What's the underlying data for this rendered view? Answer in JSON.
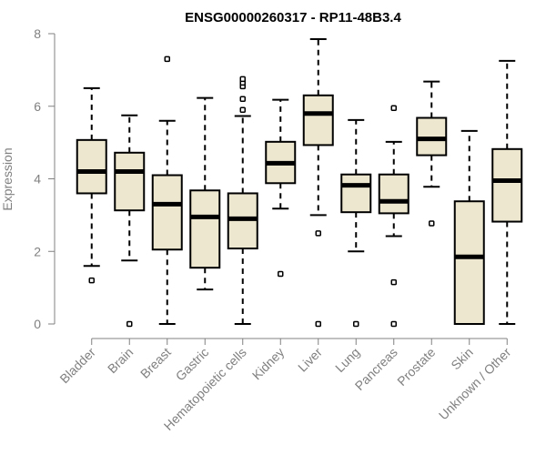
{
  "chart_data": {
    "type": "boxplot",
    "title": "ENSG00000260317 - RP11-48B3.4",
    "xlabel": "",
    "ylabel": "Expression",
    "ylim": [
      0,
      8
    ],
    "yticks": [
      0,
      2,
      4,
      6,
      8
    ],
    "colors": {
      "box_fill": "#ede7cf",
      "axis": "#808080",
      "stroke": "#000000"
    },
    "categories": [
      "Bladder",
      "Brain",
      "Breast",
      "Gastric",
      "Hematopoietic cells",
      "Kidney",
      "Liver",
      "Lung",
      "Pancreas",
      "Prostate",
      "Skin",
      "Unknown / Other"
    ],
    "boxes": [
      {
        "name": "Bladder",
        "whisker_low": 1.6,
        "q1": 3.6,
        "median": 4.2,
        "q3": 5.07,
        "whisker_high": 6.5,
        "outliers": [
          1.2
        ]
      },
      {
        "name": "Brain",
        "whisker_low": 1.75,
        "q1": 3.13,
        "median": 4.2,
        "q3": 4.72,
        "whisker_high": 5.75,
        "outliers": [
          0.0
        ]
      },
      {
        "name": "Breast",
        "whisker_low": 0.0,
        "q1": 2.05,
        "median": 3.3,
        "q3": 4.1,
        "whisker_high": 5.6,
        "outliers": [
          7.3
        ]
      },
      {
        "name": "Gastric",
        "whisker_low": 0.95,
        "q1": 1.55,
        "median": 2.95,
        "q3": 3.68,
        "whisker_high": 6.23,
        "outliers": []
      },
      {
        "name": "Hematopoietic cells",
        "whisker_low": 0.0,
        "q1": 2.08,
        "median": 2.9,
        "q3": 3.6,
        "whisker_high": 5.73,
        "outliers": [
          5.9,
          6.2,
          6.55,
          6.65,
          6.75
        ]
      },
      {
        "name": "Kidney",
        "whisker_low": 3.18,
        "q1": 3.88,
        "median": 4.43,
        "q3": 5.02,
        "whisker_high": 6.18,
        "outliers": [
          1.38
        ]
      },
      {
        "name": "Liver",
        "whisker_low": 3.0,
        "q1": 4.93,
        "median": 5.8,
        "q3": 6.3,
        "whisker_high": 7.85,
        "outliers": [
          2.5,
          0.0
        ]
      },
      {
        "name": "Lung",
        "whisker_low": 2.0,
        "q1": 3.08,
        "median": 3.82,
        "q3": 4.12,
        "whisker_high": 5.62,
        "outliers": [
          0.0
        ]
      },
      {
        "name": "Pancreas",
        "whisker_low": 2.42,
        "q1": 3.05,
        "median": 3.38,
        "q3": 4.12,
        "whisker_high": 5.02,
        "outliers": [
          5.95,
          1.15,
          0.0
        ]
      },
      {
        "name": "Prostate",
        "whisker_low": 3.78,
        "q1": 4.65,
        "median": 5.1,
        "q3": 5.68,
        "whisker_high": 6.68,
        "outliers": [
          2.77
        ]
      },
      {
        "name": "Skin",
        "whisker_low": 0.0,
        "q1": 0.0,
        "median": 1.85,
        "q3": 3.38,
        "whisker_high": 5.32,
        "outliers": []
      },
      {
        "name": "Unknown / Other",
        "whisker_low": 0.0,
        "q1": 2.82,
        "median": 3.95,
        "q3": 4.82,
        "whisker_high": 7.25,
        "outliers": []
      }
    ]
  }
}
